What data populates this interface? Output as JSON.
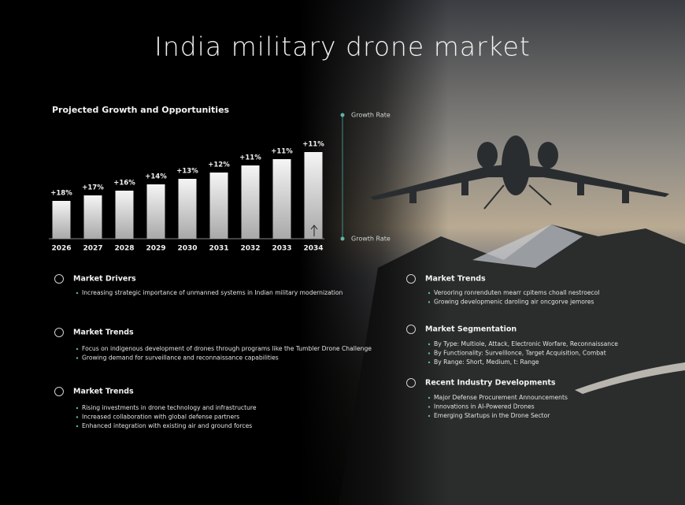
{
  "title": "India military drone market",
  "chart_data": {
    "type": "bar",
    "title": "Projected Growth and Opportunities",
    "categories": [
      "2026",
      "2027",
      "2028",
      "2029",
      "2030",
      "2031",
      "2032",
      "2033",
      "2034"
    ],
    "values": [
      48,
      55,
      61,
      69,
      76,
      84,
      93,
      101,
      110
    ],
    "annotations": [
      "+18%",
      "+17%",
      "+16%",
      "+14%",
      "+13%",
      "+12%",
      "+11%",
      "+11%",
      "+11%"
    ],
    "side_labels": [
      "Growth Rate",
      "Growth Rate"
    ],
    "ylim": [
      0,
      110
    ],
    "color": "#d9d9d9"
  },
  "sections": [
    {
      "heading": "Market Drivers",
      "items": [
        "Increasing strategic importance of unmanned systems in Indian military modernization"
      ]
    },
    {
      "heading": "Market Trends",
      "items": [
        "Focus on indigenous development of drones through programs like the Tumbler Drone Challenge",
        "Growing demand for surveillance and reconnaissance capabilities"
      ]
    },
    {
      "heading": "Market Trends",
      "items": [
        "Rising  investments in drone technology and infrastructure",
        "Increased collaboration with global defense partners",
        "Enhanced integration with existing air and ground forces"
      ]
    },
    {
      "heading": "Market Trends",
      "items": [
        "Verooring ronrenduten mearr cpitems choall nestroecol",
        "Growing developmenic daroling air oncgorve jemores"
      ]
    },
    {
      "heading": "Market Segmentation",
      "items": [
        "By Type: Multiole, Attack, Electronic Worfare, Reconnaissance",
        "By Functionality: Survelllonce, Target Acquisition, Combat",
        "By Range: Short, Medium, t: Range"
      ]
    },
    {
      "heading": "Recent Industry Developments",
      "items": [
        "Major Defense Procurement Announcements",
        "Innovations in AI-Powered Drones",
        "Emerging Startups in the Drone Sector"
      ]
    }
  ]
}
